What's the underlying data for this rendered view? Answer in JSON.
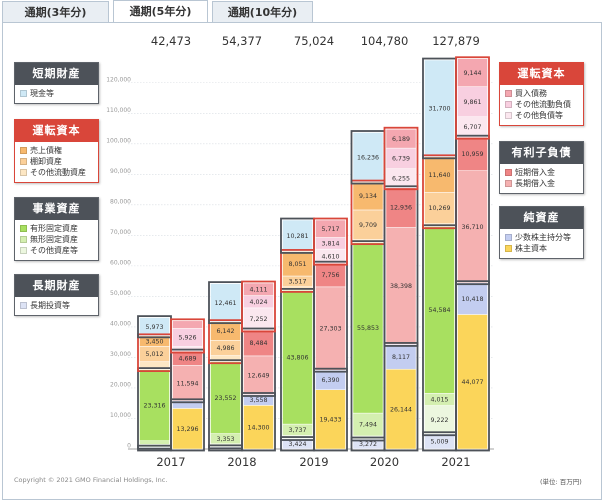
{
  "tabs": [
    {
      "label": "通期(3年分)",
      "active": false
    },
    {
      "label": "通期(5年分)",
      "active": true
    },
    {
      "label": "通期(10年分)",
      "active": false
    }
  ],
  "legend_left": [
    {
      "title": "短期財産",
      "style": "dark",
      "items": [
        {
          "label": "現金等",
          "color": "#cfe9f6"
        }
      ]
    },
    {
      "title": "運転資本",
      "style": "red",
      "items": [
        {
          "label": "売上債権",
          "color": "#f7b96e"
        },
        {
          "label": "棚卸資産",
          "color": "#fbd09a"
        },
        {
          "label": "その他流動資産",
          "color": "#fde7c4"
        }
      ]
    },
    {
      "title": "事業資産",
      "style": "dark",
      "items": [
        {
          "label": "有形固定資産",
          "color": "#a8e060"
        },
        {
          "label": "無形固定資産",
          "color": "#d4efb0"
        },
        {
          "label": "その他資産等",
          "color": "#ecf7df"
        }
      ]
    },
    {
      "title": "長期財産",
      "style": "dark",
      "items": [
        {
          "label": "長期投資等",
          "color": "#dde3f5"
        }
      ]
    }
  ],
  "legend_right": [
    {
      "title": "運転資本",
      "style": "red",
      "items": [
        {
          "label": "買入債務",
          "color": "#f4a7b0"
        },
        {
          "label": "その他流動負債",
          "color": "#f8cfe0"
        },
        {
          "label": "その他負債等",
          "color": "#fbe7ef"
        }
      ]
    },
    {
      "title": "有利子負債",
      "style": "dark",
      "items": [
        {
          "label": "短期借入金",
          "color": "#ef8585"
        },
        {
          "label": "長期借入金",
          "color": "#f5b1b1"
        }
      ]
    },
    {
      "title": "純資産",
      "style": "dark",
      "items": [
        {
          "label": "少数株主持分等",
          "color": "#c3cdf0"
        },
        {
          "label": "株主資本",
          "color": "#fbd55a"
        }
      ]
    }
  ],
  "footer": {
    "copyright": "Copyright © 2021 GMO Financial Holdings, Inc.",
    "unit": "(単位: 百万円)"
  },
  "chart_data": {
    "type": "bar",
    "subtype": "stacked-paired",
    "categories": [
      "2017",
      "2018",
      "2019",
      "2020",
      "2021"
    ],
    "totals": [
      "42,473",
      "54,377",
      "75,024",
      "104,780",
      "127,879"
    ],
    "ylim": [
      0,
      125000
    ],
    "yticks": [
      0,
      10000,
      20000,
      30000,
      40000,
      50000,
      60000,
      70000,
      80000,
      90000,
      100000,
      110000,
      120000
    ],
    "ytick_labels": [
      "0",
      "10,000",
      "20,000",
      "30,000",
      "40,000",
      "50,000",
      "60,000",
      "70,000",
      "80,000",
      "90,000",
      "100,000",
      "110,000",
      "120,000"
    ],
    "assets": [
      {
        "year": "2017",
        "segments": [
          {
            "name": "長期投資等",
            "value": 600,
            "label": ""
          },
          {
            "name": "その他資産等",
            "value": 900,
            "label": ""
          },
          {
            "name": "無形固定資産",
            "value": 1200,
            "label": ""
          },
          {
            "name": "有形固定資産",
            "value": 23316,
            "label": "23,316"
          },
          {
            "name": "その他流動資産",
            "value": 2600,
            "label": ""
          },
          {
            "name": "棚卸資産",
            "value": 5012,
            "label": "5,012"
          },
          {
            "name": "売上債権",
            "value": 3450,
            "label": "3,450"
          },
          {
            "name": "現金等",
            "value": 5973,
            "label": "5,973"
          }
        ]
      },
      {
        "year": "2018",
        "segments": [
          {
            "name": "長期投資等",
            "value": 700,
            "label": ""
          },
          {
            "name": "その他資産等",
            "value": 1000,
            "label": ""
          },
          {
            "name": "無形固定資産",
            "value": 3353,
            "label": "3,353"
          },
          {
            "name": "有形固定資産",
            "value": 23552,
            "label": "23,552"
          },
          {
            "name": "その他流動資産",
            "value": 2000,
            "label": ""
          },
          {
            "name": "棚卸資産",
            "value": 4986,
            "label": "4,986"
          },
          {
            "name": "売上債権",
            "value": 6142,
            "label": "6,142"
          },
          {
            "name": "現金等",
            "value": 12461,
            "label": "12,461"
          }
        ]
      },
      {
        "year": "2019",
        "segments": [
          {
            "name": "長期投資等",
            "value": 3424,
            "label": "3,424"
          },
          {
            "name": "その他資産等",
            "value": 1000,
            "label": ""
          },
          {
            "name": "無形固定資産",
            "value": 3737,
            "label": "3,737"
          },
          {
            "name": "有形固定資産",
            "value": 43806,
            "label": "43,806"
          },
          {
            "name": "その他流動資産",
            "value": 1200,
            "label": ""
          },
          {
            "name": "棚卸資産",
            "value": 3517,
            "label": "3,517"
          },
          {
            "name": "売上債権",
            "value": 8051,
            "label": "8,051"
          },
          {
            "name": "現金等",
            "value": 10281,
            "label": "10,281"
          }
        ]
      },
      {
        "year": "2020",
        "segments": [
          {
            "name": "長期投資等",
            "value": 3272,
            "label": "3,272"
          },
          {
            "name": "その他資産等",
            "value": 1000,
            "label": ""
          },
          {
            "name": "無形固定資産",
            "value": 7494,
            "label": "7,494"
          },
          {
            "name": "有形固定資産",
            "value": 55853,
            "label": "55,853"
          },
          {
            "name": "その他流動資産",
            "value": 1000,
            "label": ""
          },
          {
            "name": "棚卸資産",
            "value": 9709,
            "label": "9,709"
          },
          {
            "name": "売上債権",
            "value": 9134,
            "label": "9,134"
          },
          {
            "name": "現金等",
            "value": 16236,
            "label": "16,236"
          }
        ]
      },
      {
        "year": "2021",
        "segments": [
          {
            "name": "長期投資等",
            "value": 5009,
            "label": "5,009"
          },
          {
            "name": "その他資産等",
            "value": 9222,
            "label": "9,222"
          },
          {
            "name": "無形固定資産",
            "value": 4015,
            "label": "4,015"
          },
          {
            "name": "有形固定資産",
            "value": 54584,
            "label": "54,584"
          },
          {
            "name": "その他流動資産",
            "value": 1000,
            "label": ""
          },
          {
            "name": "棚卸資産",
            "value": 10269,
            "label": "10,269"
          },
          {
            "name": "売上債権",
            "value": 11640,
            "label": "11,640"
          },
          {
            "name": "現金等",
            "value": 31700,
            "label": "31,700"
          }
        ]
      }
    ],
    "liabilities": [
      {
        "year": "2017",
        "segments": [
          {
            "name": "株主資本",
            "value": 13296,
            "label": "13,296"
          },
          {
            "name": "少数株主持分等",
            "value": 2500,
            "label": ""
          },
          {
            "name": "長期借入金",
            "value": 11594,
            "label": "11,594"
          },
          {
            "name": "短期借入金",
            "value": 4689,
            "label": "4,689"
          },
          {
            "name": "その他負債等",
            "value": 1500,
            "label": ""
          },
          {
            "name": "その他流動負債",
            "value": 5926,
            "label": "5,926"
          },
          {
            "name": "買入債務",
            "value": 2500,
            "label": ""
          }
        ]
      },
      {
        "year": "2018",
        "segments": [
          {
            "name": "株主資本",
            "value": 14300,
            "label": "14,300"
          },
          {
            "name": "少数株主持分等",
            "value": 3558,
            "label": "3,558"
          },
          {
            "name": "長期借入金",
            "value": 12649,
            "label": "12,649"
          },
          {
            "name": "短期借入金",
            "value": 8484,
            "label": "8,484"
          },
          {
            "name": "その他負債等",
            "value": 7252,
            "label": "7,252"
          },
          {
            "name": "その他流動負債",
            "value": 4024,
            "label": "4,024"
          },
          {
            "name": "買入債務",
            "value": 4111,
            "label": "4,111"
          }
        ]
      },
      {
        "year": "2019",
        "segments": [
          {
            "name": "株主資本",
            "value": 19433,
            "label": "19,433"
          },
          {
            "name": "少数株主持分等",
            "value": 6390,
            "label": "6,390"
          },
          {
            "name": "長期借入金",
            "value": 27303,
            "label": "27,303"
          },
          {
            "name": "短期借入金",
            "value": 7756,
            "label": "7,756"
          },
          {
            "name": "その他負債等",
            "value": 4610,
            "label": "4,610"
          },
          {
            "name": "その他流動負債",
            "value": 3814,
            "label": "3,814"
          },
          {
            "name": "買入債務",
            "value": 5717,
            "label": "5,717"
          }
        ]
      },
      {
        "year": "2020",
        "segments": [
          {
            "name": "株主資本",
            "value": 26144,
            "label": "26,144"
          },
          {
            "name": "少数株主持分等",
            "value": 8117,
            "label": "8,117"
          },
          {
            "name": "長期借入金",
            "value": 38398,
            "label": "38,398"
          },
          {
            "name": "短期借入金",
            "value": 12936,
            "label": "12,936"
          },
          {
            "name": "その他負債等",
            "value": 6255,
            "label": "6,255"
          },
          {
            "name": "その他流動負債",
            "value": 6739,
            "label": "6,739"
          },
          {
            "name": "買入債務",
            "value": 6189,
            "label": "6,189"
          }
        ]
      },
      {
        "year": "2021",
        "segments": [
          {
            "name": "株主資本",
            "value": 44077,
            "label": "44,077"
          },
          {
            "name": "少数株主持分等",
            "value": 10418,
            "label": "10,418"
          },
          {
            "name": "長期借入金",
            "value": 36710,
            "label": "36,710"
          },
          {
            "name": "短期借入金",
            "value": 10959,
            "label": "10,959"
          },
          {
            "name": "その他負債等",
            "value": 6707,
            "label": "6,707"
          },
          {
            "name": "その他流動負債",
            "value": 9861,
            "label": "9,861"
          },
          {
            "name": "買入債務",
            "value": 9144,
            "label": "9,144"
          }
        ]
      }
    ],
    "colors": {
      "現金等": "#cfe9f6",
      "売上債権": "#f7b96e",
      "棚卸資産": "#fbd09a",
      "その他流動資産": "#fde7c4",
      "有形固定資産": "#a8e060",
      "無形固定資産": "#d4efb0",
      "その他資産等": "#ecf7df",
      "長期投資等": "#dde3f5",
      "買入債務": "#f4a7b0",
      "その他流動負債": "#f8cfe0",
      "その他負債等": "#fbe7ef",
      "短期借入金": "#ef8585",
      "長期借入金": "#f5b1b1",
      "少数株主持分等": "#c3cdf0",
      "株主資本": "#fbd55a"
    },
    "group_outline_colors": {
      "短期財産": "#4d5259",
      "運転資本": "#d9463a",
      "事業資産": "#4d5259",
      "長期財産": "#4d5259",
      "有利子負債": "#4d5259",
      "純資産": "#4d5259"
    },
    "grid": true
  }
}
